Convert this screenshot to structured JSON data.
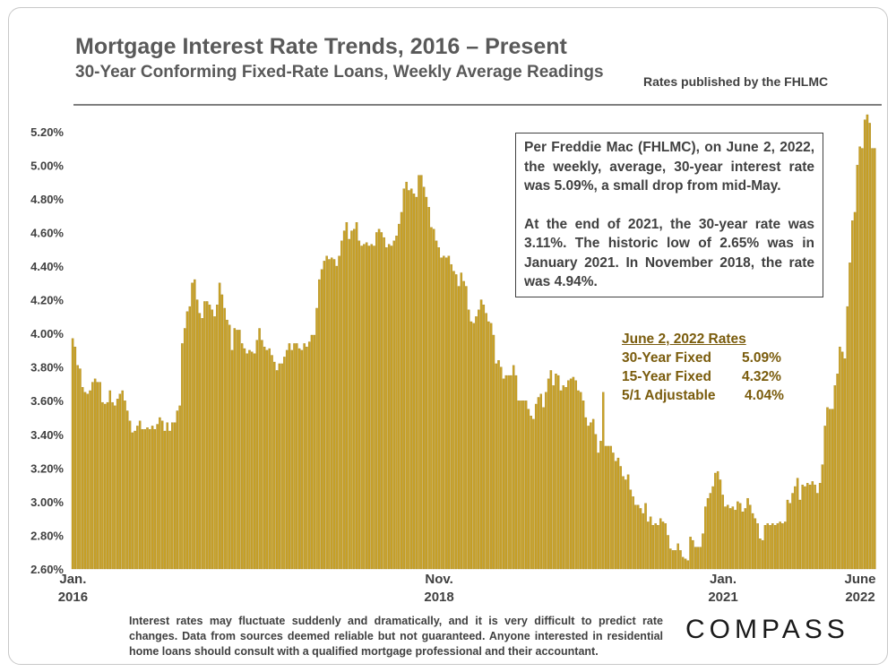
{
  "header": {
    "title": "Mortgage Interest Rate Trends, 2016 – Present",
    "subtitle": "30-Year Conforming Fixed-Rate Loans, Weekly Average Readings",
    "source": "Rates published by the FHLMC"
  },
  "annotation": {
    "paragraph1": "Per Freddie Mac (FHLMC), on June 2, 2022, the weekly, average, 30-year interest rate was 5.09%, a small drop from mid-May.",
    "paragraph2": "At the end of 2021, the 30-year rate was 3.11%. The historic low of 2.65% was in January 2021. In November 2018, the rate was 4.94%."
  },
  "rates_table": {
    "heading": "June 2, 2022 Rates",
    "rows": [
      {
        "label": "30-Year Fixed",
        "value": "5.09%"
      },
      {
        "label": "15-Year Fixed",
        "value": "4.32%"
      },
      {
        "label": "5/1 Adjustable",
        "value": "4.04%"
      }
    ]
  },
  "footer": {
    "disclaimer": "Interest rates may fluctuate suddenly and dramatically, and it is very difficult to predict rate changes. Data from sources deemed reliable but not guaranteed. Anyone interested in residential home loans should consult with a qualified mortgage professional and their accountant.",
    "brand": "COMPASS"
  },
  "colors": {
    "bar": "#c9a227",
    "bar_edge": "#9c7a12",
    "text": "#404040",
    "accent_text": "#7a5c0d"
  },
  "chart_data": {
    "type": "bar",
    "title": "Mortgage Interest Rate Trends, 2016 – Present",
    "xlabel": "",
    "ylabel": "",
    "ylim": [
      2.6,
      5.3
    ],
    "y_ticks": [
      "5.20%",
      "5.00%",
      "4.80%",
      "4.60%",
      "4.40%",
      "4.20%",
      "4.00%",
      "3.80%",
      "3.60%",
      "3.40%",
      "3.20%",
      "3.00%",
      "2.80%",
      "2.60%"
    ],
    "y_tick_values": [
      5.2,
      5.0,
      4.8,
      4.6,
      4.4,
      4.2,
      4.0,
      3.8,
      3.6,
      3.4,
      3.2,
      3.0,
      2.8,
      2.6
    ],
    "x_tick_labels": [
      {
        "line1": "Jan.",
        "line2": "2016",
        "index": 0
      },
      {
        "line1": "Nov.",
        "line2": "2018",
        "index": 147
      },
      {
        "line1": "Jan.",
        "line2": "2021",
        "index": 261
      },
      {
        "line1": "June",
        "line2": "2022",
        "index": 334
      }
    ],
    "series": [
      {
        "name": "30-Year Fixed Rate (weekly average, %)",
        "values": [
          3.97,
          3.92,
          3.81,
          3.79,
          3.68,
          3.65,
          3.64,
          3.66,
          3.71,
          3.73,
          3.71,
          3.71,
          3.59,
          3.58,
          3.59,
          3.66,
          3.59,
          3.57,
          3.61,
          3.64,
          3.66,
          3.6,
          3.54,
          3.48,
          3.41,
          3.42,
          3.45,
          3.48,
          3.43,
          3.43,
          3.44,
          3.43,
          3.45,
          3.43,
          3.46,
          3.5,
          3.48,
          3.42,
          3.47,
          3.42,
          3.47,
          3.47,
          3.54,
          3.57,
          3.94,
          4.03,
          4.13,
          4.16,
          4.3,
          4.32,
          4.2,
          4.12,
          4.09,
          4.19,
          4.19,
          4.17,
          4.14,
          4.1,
          4.17,
          4.3,
          4.23,
          4.15,
          4.08,
          4.05,
          3.9,
          4.03,
          4.02,
          4.02,
          3.94,
          3.91,
          3.88,
          3.9,
          3.89,
          3.88,
          3.96,
          4.03,
          3.96,
          3.92,
          3.9,
          3.91,
          3.87,
          3.83,
          3.78,
          3.82,
          3.82,
          3.86,
          3.9,
          3.94,
          3.9,
          3.94,
          3.94,
          3.91,
          3.9,
          3.94,
          3.92,
          3.95,
          3.99,
          3.99,
          4.15,
          4.32,
          4.38,
          4.43,
          4.46,
          4.44,
          4.45,
          4.44,
          4.4,
          4.46,
          4.55,
          4.61,
          4.66,
          4.56,
          4.61,
          4.62,
          4.66,
          4.55,
          4.52,
          4.53,
          4.54,
          4.52,
          4.53,
          4.52,
          4.6,
          4.62,
          4.6,
          4.57,
          4.51,
          4.53,
          4.52,
          4.55,
          4.58,
          4.65,
          4.72,
          4.86,
          4.9,
          4.85,
          4.86,
          4.83,
          4.81,
          4.94,
          4.94,
          4.87,
          4.81,
          4.75,
          4.63,
          4.62,
          4.55,
          4.51,
          4.45,
          4.46,
          4.45,
          4.46,
          4.41,
          4.37,
          4.35,
          4.28,
          4.36,
          4.31,
          4.28,
          4.14,
          4.07,
          4.06,
          4.1,
          4.14,
          4.2,
          4.17,
          4.12,
          4.07,
          4.06,
          3.99,
          3.82,
          3.84,
          3.8,
          3.73,
          3.75,
          3.75,
          3.75,
          3.81,
          3.75,
          3.6,
          3.6,
          3.6,
          3.6,
          3.55,
          3.51,
          3.49,
          3.58,
          3.62,
          3.64,
          3.56,
          3.65,
          3.73,
          3.78,
          3.69,
          3.76,
          3.75,
          3.66,
          3.69,
          3.68,
          3.72,
          3.73,
          3.74,
          3.72,
          3.66,
          3.65,
          3.6,
          3.5,
          3.45,
          3.47,
          3.49,
          3.4,
          3.29,
          3.36,
          3.65,
          3.33,
          3.33,
          3.33,
          3.29,
          3.24,
          3.26,
          3.21,
          3.15,
          3.13,
          3.16,
          3.07,
          3.03,
          2.98,
          2.98,
          2.96,
          2.93,
          2.99,
          2.88,
          2.91,
          2.86,
          2.87,
          2.86,
          2.9,
          2.88,
          2.87,
          2.8,
          2.72,
          2.71,
          2.71,
          2.75,
          2.71,
          2.67,
          2.66,
          2.65,
          2.79,
          2.77,
          2.73,
          2.73,
          2.73,
          2.81,
          2.97,
          3.02,
          3.05,
          3.09,
          3.17,
          3.18,
          3.13,
          3.04,
          2.97,
          2.98,
          2.96,
          2.97,
          2.95,
          3.0,
          2.99,
          2.94,
          2.96,
          3.02,
          2.98,
          2.93,
          2.9,
          2.87,
          2.78,
          2.77,
          2.86,
          2.87,
          2.86,
          2.87,
          2.86,
          2.87,
          2.88,
          2.87,
          2.88,
          3.01,
          2.99,
          3.05,
          3.09,
          3.14,
          3.01,
          3.1,
          3.09,
          3.11,
          3.1,
          3.12,
          3.1,
          3.05,
          3.11,
          3.22,
          3.45,
          3.56,
          3.55,
          3.55,
          3.69,
          3.76,
          3.92,
          3.89,
          3.85,
          4.16,
          4.42,
          4.67,
          4.72,
          5.0,
          5.11,
          5.1,
          5.27,
          5.3,
          5.25,
          5.1,
          5.1
        ]
      }
    ]
  }
}
